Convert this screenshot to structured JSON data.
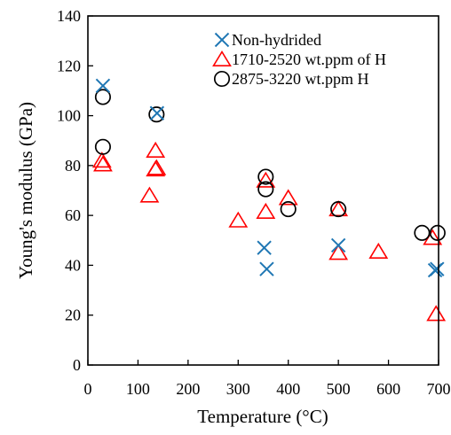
{
  "chart_data": {
    "type": "scatter",
    "xlabel": "Temperature (°C)",
    "ylabel": "Young's modulus (GPa)",
    "xlim": [
      0,
      700
    ],
    "ylim": [
      0,
      140
    ],
    "xticks": [
      0,
      100,
      200,
      300,
      400,
      500,
      600,
      700
    ],
    "yticks": [
      0,
      20,
      40,
      60,
      80,
      100,
      120,
      140
    ],
    "grid": false,
    "legend_position": "top-right (inside plot)",
    "series": [
      {
        "name": "Non-hydrided",
        "marker": "x",
        "color": "#1f77b4",
        "points": [
          [
            30,
            112
          ],
          [
            138,
            101
          ],
          [
            352,
            47
          ],
          [
            357,
            38.5
          ],
          [
            500,
            48
          ],
          [
            693,
            38
          ],
          [
            697,
            38.5
          ]
        ]
      },
      {
        "name": "1710-2520 wt.ppm of H",
        "marker": "triangle",
        "color": "#ff0000",
        "points": [
          [
            28,
            82
          ],
          [
            30,
            80.5
          ],
          [
            123,
            68
          ],
          [
            135,
            86
          ],
          [
            135,
            78.5
          ],
          [
            137,
            79
          ],
          [
            300,
            58
          ],
          [
            355,
            61.5
          ],
          [
            355,
            74
          ],
          [
            400,
            67
          ],
          [
            500,
            62.5
          ],
          [
            500,
            45
          ],
          [
            580,
            45.5
          ],
          [
            688,
            51
          ],
          [
            695,
            20.5
          ]
        ]
      },
      {
        "name": "2875-3220 wt.ppm H",
        "marker": "circle",
        "color": "#000000",
        "points": [
          [
            30,
            107.5
          ],
          [
            30,
            87.5
          ],
          [
            137,
            100.5
          ],
          [
            355,
            75.5
          ],
          [
            355,
            70.5
          ],
          [
            400,
            62.5
          ],
          [
            500,
            62.5
          ],
          [
            667,
            53
          ],
          [
            698,
            53
          ]
        ]
      }
    ]
  }
}
